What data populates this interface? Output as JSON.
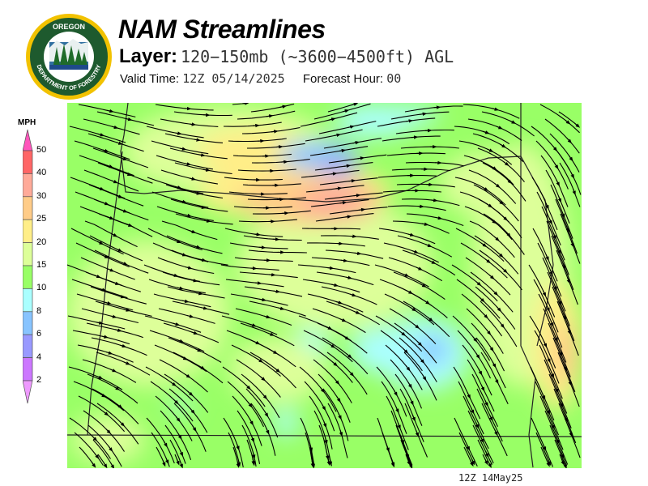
{
  "header": {
    "title": "NAM Streamlines",
    "layer_label": "Layer:",
    "layer_value": "120−150mb (~3600−4500ft) AGL",
    "valid_label": "Valid Time:",
    "valid_value": "12Z 05/14/2025",
    "forecast_label": "Forecast Hour:",
    "forecast_value": "00"
  },
  "logo": {
    "top_text": "OREGON",
    "ring_text": "DEPARTMENT OF FORESTRY"
  },
  "legend": {
    "unit": "MPH",
    "ticks": [
      "50",
      "40",
      "30",
      "25",
      "20",
      "15",
      "10",
      "8",
      "6",
      "4",
      "2"
    ],
    "colors": {
      "above_50": "#ff55bb",
      "40-50": "#ff6666",
      "30-40": "#ffaa99",
      "25-30": "#ffcc88",
      "20-25": "#ffee88",
      "15-20": "#ddff99",
      "10-15": "#99ff66",
      "8-10": "#aaffff",
      "6-8": "#88c4ff",
      "4-6": "#9999ff",
      "2-4": "#cc77ff",
      "below_2": "#ee99ff"
    }
  },
  "map": {
    "region": "Oregon",
    "field": "wind streamlines",
    "streamline_color": "#000000"
  },
  "footer": {
    "timestamp": "12Z 14May25"
  }
}
